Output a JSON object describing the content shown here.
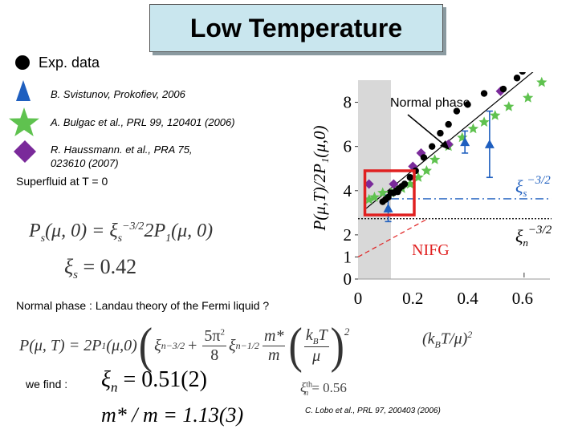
{
  "title": "Low Temperature",
  "legend": {
    "exp": "Exp. data",
    "svistunov": "B. Svistunov, Prokofiev, 2006",
    "bulgac": "A. Bulgac et al., PRL 99, 120401 (2006)",
    "haussmann_1": "R. Haussmann. et al., PRA 75,",
    "haussmann_2": "023610 (2007)"
  },
  "superfluid_label": "Superfluid at T = 0",
  "formulas": {
    "ps_lhs": "P",
    "ps_lhs_sub": "s",
    "ps_args": "(μ, 0) = ξ",
    "ps_xi_sub": "s",
    "ps_exp": "−3/2",
    "ps_rhs": "2P",
    "ps_rhs_sub": "1",
    "ps_rhs_args": "(μ, 0)",
    "xis_lhs": "ξ",
    "xis_sub": "s",
    "xis_val": "= 0.42"
  },
  "normal_phase_text": "Normal phase : Landau theory of the Fermi liquid ?",
  "landau": {
    "lhs": "P(μ, T) = 2P",
    "lhs_sub": "1",
    "lhs_args": "(μ,0)",
    "xi": "ξ",
    "xi_sub": "n",
    "exp1": "−3/2",
    "plus": "+",
    "frac_num": "5π",
    "frac_num_exp": "2",
    "frac_den": "8",
    "exp2": "−1/2",
    "m_num": "m*",
    "m_den": "m",
    "kt_num": "k",
    "kt_num_sub": "B",
    "kt_num_t": "T",
    "kt_den": "μ",
    "sq": "2",
    "right": "(k",
    "right_sub": "B",
    "right_tail": "T/μ)",
    "right_exp": "2"
  },
  "we_find": "we find :",
  "results": {
    "xin": "ξ",
    "xin_sub": "n",
    "xin_val": "= 0.51(2)",
    "mass": "m* / m = 1.13(3)",
    "small_xi": "ξ",
    "small_sup": "th",
    "small_sub": "n",
    "small_val": "= 0.56"
  },
  "citation": "C. Lobo et al., PRL 97, 200403 (2006)",
  "chart_data": {
    "type": "scatter",
    "ylabel": "P(μ,T)/2P₁(μ,0)",
    "xlim": [
      0,
      0.7
    ],
    "ylim": [
      0,
      9
    ],
    "x_ticks": [
      "0",
      "0.2",
      "0.4",
      "0.6"
    ],
    "x_tick_values": [
      0,
      0.2,
      0.4,
      0.6
    ],
    "y_ticks": [
      "0",
      "1",
      "2",
      "4",
      "6",
      "8"
    ],
    "y_tick_values": [
      0,
      1,
      2,
      4,
      6,
      8
    ],
    "superfluid_band": [
      0,
      0.12
    ],
    "annotations": {
      "normal_phase": "Normal phase",
      "xi_s_label": "ξs",
      "xi_s_exp": "−3/2",
      "xi_n_label": "ξn",
      "xi_n_exp": "−3/2",
      "nifg": "NIFG"
    },
    "colors": {
      "exp": "#000000",
      "svistunov": "#1f5fbf",
      "bulgac": "#5fc24f",
      "haussmann": "#7a2a9a",
      "highlight": "#e02020",
      "nifg": "#e02020",
      "xi_s_line": "#1f5fbf"
    },
    "series": [
      {
        "name": "Exp. data",
        "points": [
          [
            0.09,
            3.5
          ],
          [
            0.1,
            3.6
          ],
          [
            0.11,
            3.7
          ],
          [
            0.12,
            3.9
          ],
          [
            0.13,
            3.9
          ],
          [
            0.14,
            4.0
          ],
          [
            0.145,
            3.95
          ],
          [
            0.15,
            4.1
          ],
          [
            0.16,
            4.2
          ],
          [
            0.17,
            4.3
          ],
          [
            0.19,
            4.6
          ],
          [
            0.21,
            4.9
          ],
          [
            0.24,
            5.5
          ],
          [
            0.27,
            6.0
          ],
          [
            0.3,
            6.6
          ],
          [
            0.33,
            7.0
          ],
          [
            0.36,
            7.6
          ],
          [
            0.4,
            7.9
          ],
          [
            0.46,
            8.4
          ],
          [
            0.53,
            8.6
          ],
          [
            0.58,
            9.1
          ],
          [
            0.6,
            9.4
          ]
        ]
      },
      {
        "name": "B. Svistunov, Prokofiev, 2006",
        "points": [
          [
            0.11,
            3.2
          ],
          [
            0.39,
            6.2
          ],
          [
            0.48,
            6.1
          ]
        ],
        "errors": [
          0.6,
          0.5,
          1.5
        ]
      },
      {
        "name": "A. Bulgac et al., PRL 99, 120401 (2006)",
        "points": [
          [
            0.04,
            3.6
          ],
          [
            0.06,
            3.7
          ],
          [
            0.09,
            3.9
          ],
          [
            0.12,
            3.9
          ],
          [
            0.14,
            4.0
          ],
          [
            0.16,
            4.1
          ],
          [
            0.19,
            4.3
          ],
          [
            0.22,
            4.6
          ],
          [
            0.25,
            4.9
          ],
          [
            0.28,
            5.4
          ],
          [
            0.33,
            6.0
          ],
          [
            0.38,
            6.4
          ],
          [
            0.42,
            6.8
          ],
          [
            0.46,
            7.1
          ],
          [
            0.5,
            7.4
          ],
          [
            0.55,
            7.8
          ],
          [
            0.62,
            8.2
          ],
          [
            0.67,
            8.9
          ]
        ]
      },
      {
        "name": "R. Haussmann. et al., PRA 75, 023610 (2007)",
        "points": [
          [
            0.04,
            4.3
          ],
          [
            0.13,
            4.3
          ],
          [
            0.2,
            5.1
          ],
          [
            0.23,
            5.7
          ],
          [
            0.33,
            6.1
          ],
          [
            0.52,
            8.5
          ]
        ]
      }
    ],
    "lines": {
      "normal_fit": [
        [
          0.03,
          3.2
        ],
        [
          0.7,
          10.0
        ]
      ],
      "xi_s_level": 3.63,
      "xi_n_level": 2.73,
      "nifg": [
        [
          0.0,
          1.0
        ],
        [
          0.25,
          2.7
        ]
      ]
    }
  }
}
